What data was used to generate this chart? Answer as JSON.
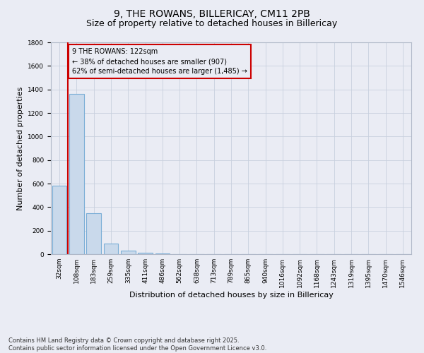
{
  "title": "9, THE ROWANS, BILLERICAY, CM11 2PB",
  "subtitle": "Size of property relative to detached houses in Billericay",
  "xlabel": "Distribution of detached houses by size in Billericay",
  "ylabel": "Number of detached properties",
  "categories": [
    "32sqm",
    "108sqm",
    "183sqm",
    "259sqm",
    "335sqm",
    "411sqm",
    "486sqm",
    "562sqm",
    "638sqm",
    "713sqm",
    "789sqm",
    "865sqm",
    "940sqm",
    "1016sqm",
    "1092sqm",
    "1168sqm",
    "1243sqm",
    "1319sqm",
    "1395sqm",
    "1470sqm",
    "1546sqm"
  ],
  "values": [
    580,
    1360,
    350,
    90,
    30,
    15,
    5,
    1,
    0,
    0,
    0,
    0,
    0,
    0,
    0,
    0,
    0,
    0,
    0,
    0,
    0
  ],
  "bar_color": "#c9d9eb",
  "bar_edge_color": "#7aaed6",
  "grid_color": "#c8d0de",
  "background_color": "#eaecf4",
  "vline_color": "#cc0000",
  "annotation_text": "9 THE ROWANS: 122sqm\n← 38% of detached houses are smaller (907)\n62% of semi-detached houses are larger (1,485) →",
  "annotation_box_color": "#cc0000",
  "ylim": [
    0,
    1800
  ],
  "yticks": [
    0,
    200,
    400,
    600,
    800,
    1000,
    1200,
    1400,
    1600,
    1800
  ],
  "footnote": "Contains HM Land Registry data © Crown copyright and database right 2025.\nContains public sector information licensed under the Open Government Licence v3.0.",
  "title_fontsize": 10,
  "subtitle_fontsize": 9,
  "label_fontsize": 8,
  "tick_fontsize": 6.5,
  "annotation_fontsize": 7,
  "footnote_fontsize": 6
}
